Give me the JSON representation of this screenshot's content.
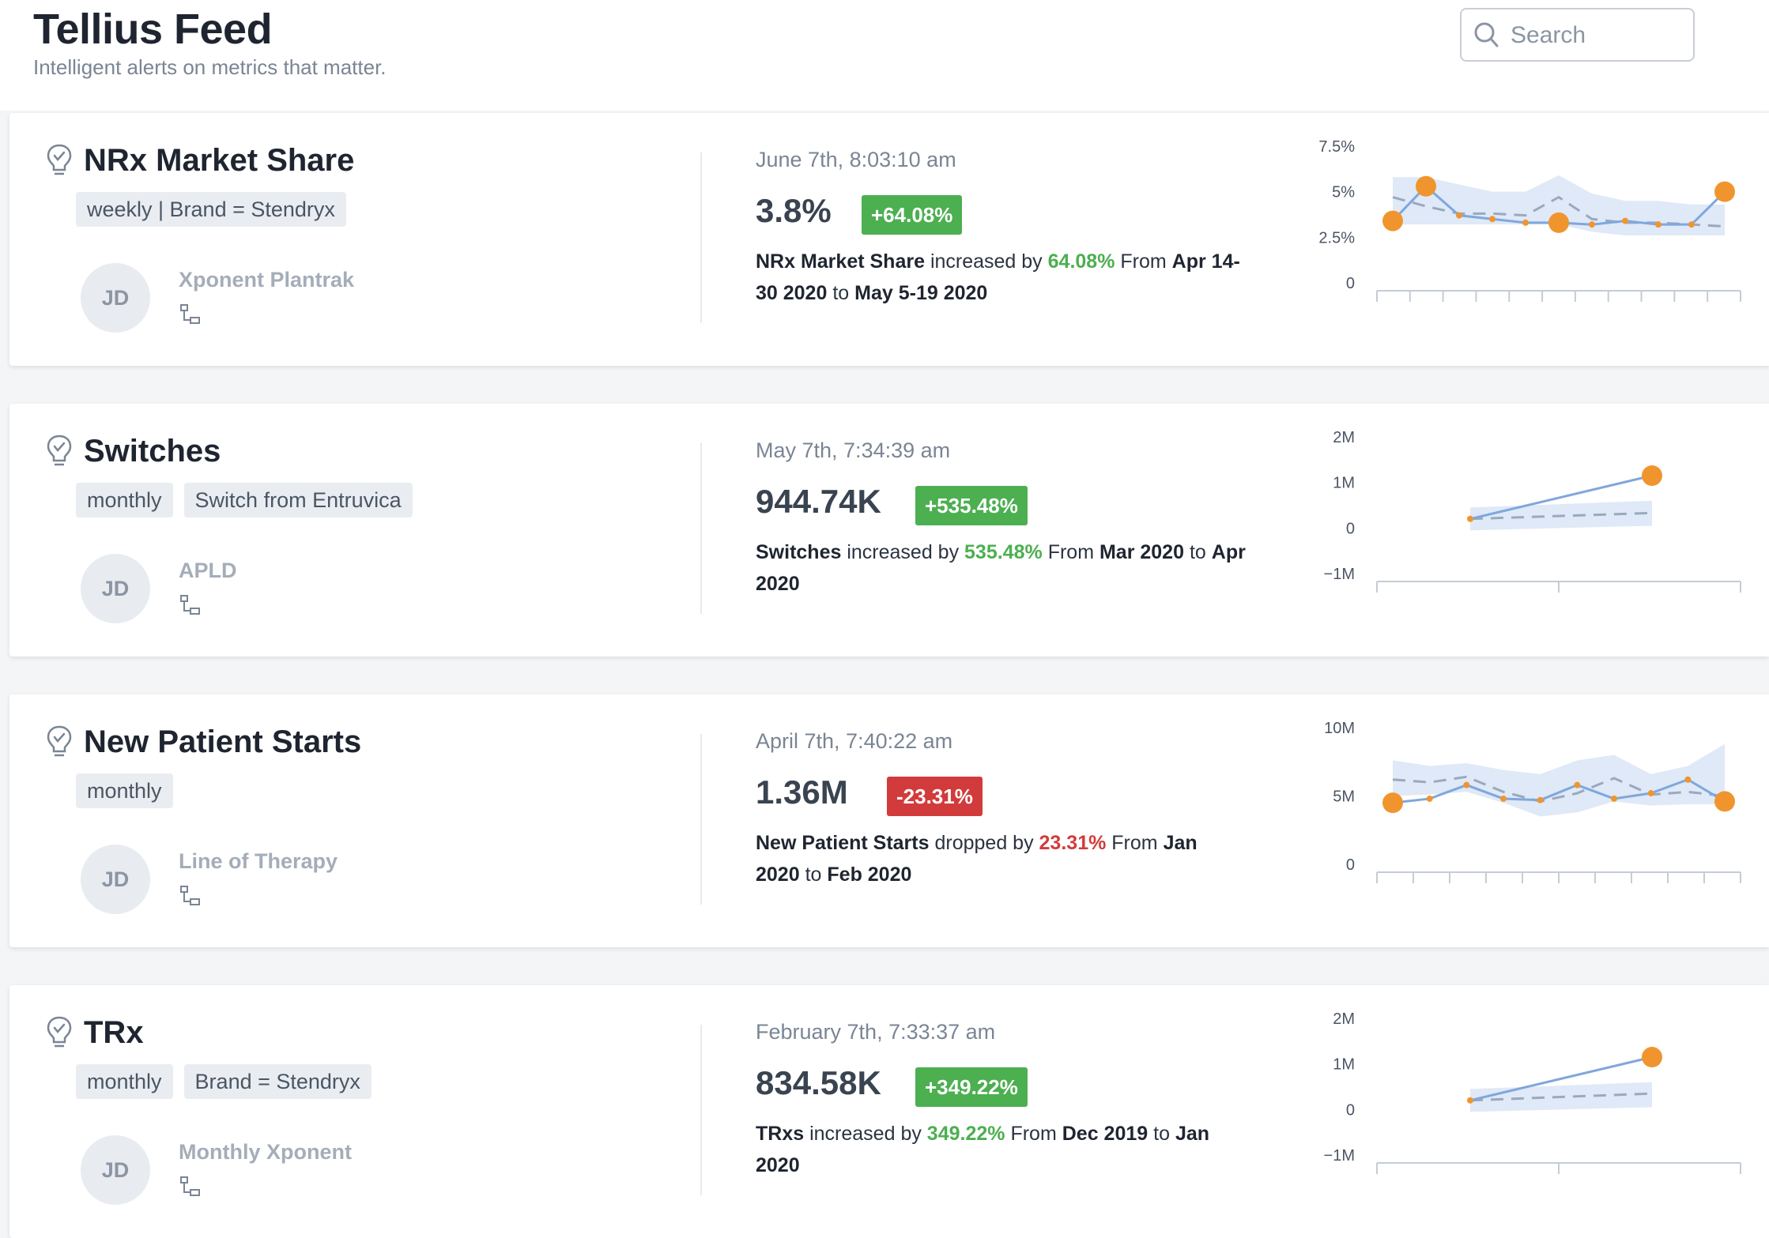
{
  "app": {
    "title": "Tellius Feed",
    "subtitle": "Intelligent alerts on metrics that matter."
  },
  "search": {
    "placeholder": "Search",
    "icon": "search-icon"
  },
  "colors": {
    "accent_orange": "#f0952e",
    "line_blue": "#7fa7dc",
    "band_blue": "#dce7f6",
    "positive_green": "#4caf50",
    "negative_red": "#d23b3b"
  },
  "cards": [
    {
      "title": "NRx Market Share",
      "tags": [
        "weekly | Brand = Stendryx"
      ],
      "avatar": "JD",
      "source": "Xponent Plantrak",
      "timestamp": "June 7th, 8:03:10 am",
      "value": "3.8%",
      "badge": "+64.08%",
      "direction": "up",
      "desc": {
        "metric": "NRx Market Share",
        "verb": "increased by",
        "change": "64.08%",
        "from_word": "From",
        "from": "Apr 14-30 2020",
        "to_word": "to",
        "to": "May 5-19 2020"
      }
    },
    {
      "title": "Switches",
      "tags": [
        "monthly",
        "Switch from Entruvica"
      ],
      "avatar": "JD",
      "source": "APLD",
      "timestamp": "May 7th, 7:34:39 am",
      "value": "944.74K",
      "badge": "+535.48%",
      "direction": "up",
      "desc": {
        "metric": "Switches",
        "verb": "increased by",
        "change": "535.48%",
        "from_word": "From",
        "from": "Mar 2020",
        "to_word": "to",
        "to": "Apr 2020"
      }
    },
    {
      "title": "New Patient Starts",
      "tags": [
        "monthly"
      ],
      "avatar": "JD",
      "source": "Line of Therapy",
      "timestamp": "April 7th, 7:40:22 am",
      "value": "1.36M",
      "badge": "-23.31%",
      "direction": "down",
      "desc": {
        "metric": "New Patient Starts",
        "verb": "dropped by",
        "change": "23.31%",
        "from_word": "From",
        "from": "Jan 2020",
        "to_word": "to",
        "to": "Feb 2020"
      }
    },
    {
      "title": "TRx",
      "tags": [
        "monthly",
        "Brand = Stendryx"
      ],
      "avatar": "JD",
      "source": "Monthly Xponent",
      "timestamp": "February 7th, 7:33:37 am",
      "value": "834.58K",
      "badge": "+349.22%",
      "direction": "up",
      "desc": {
        "metric": "TRxs",
        "verb": "increased by",
        "change": "349.22%",
        "from_word": "From",
        "from": "Dec 2019",
        "to_word": "to",
        "to": "Jan 2020"
      }
    }
  ],
  "chart_data": [
    {
      "type": "line",
      "ticks": [
        "0",
        "2.5%",
        "5%",
        "7.5%"
      ],
      "ylim": [
        0,
        7.5
      ],
      "x": [
        1,
        2,
        3,
        4,
        5,
        6,
        7,
        8,
        9,
        10,
        11
      ],
      "series": [
        {
          "values": [
            3.4,
            5.3,
            3.7,
            3.5,
            3.3,
            3.3,
            3.2,
            3.4,
            3.2,
            3.2,
            5.0
          ]
        },
        {
          "values": [
            4.7,
            4.2,
            3.8,
            3.8,
            3.7,
            4.7,
            3.5,
            3.3,
            3.3,
            3.2,
            3.1
          ]
        }
      ],
      "band": {
        "lower": [
          3.2,
          3.2,
          3.2,
          3.2,
          3.2,
          3.2,
          2.8,
          2.6,
          2.6,
          2.6,
          2.6
        ],
        "upper": [
          5.8,
          5.8,
          5.4,
          5.0,
          5.0,
          5.9,
          4.9,
          4.5,
          4.5,
          4.3,
          4.3
        ]
      },
      "highlight": [
        1,
        2,
        6,
        11
      ]
    },
    {
      "type": "line",
      "ticks": [
        "−1M",
        "0",
        "1M",
        "2M"
      ],
      "ylim": [
        -1,
        2
      ],
      "x": [
        1,
        2
      ],
      "series": [
        {
          "values": [
            0.2,
            1.15
          ]
        },
        {
          "values": [
            0.2,
            0.33
          ]
        }
      ],
      "band": {
        "lower": [
          -0.05,
          0.05
        ],
        "upper": [
          0.45,
          0.6
        ]
      },
      "highlight": [
        2
      ]
    },
    {
      "type": "line",
      "ticks": [
        "0",
        "5M",
        "10M"
      ],
      "ylim": [
        0,
        10
      ],
      "x": [
        1,
        2,
        3,
        4,
        5,
        6,
        7,
        8,
        9,
        10
      ],
      "series": [
        {
          "values": [
            4.5,
            4.8,
            5.8,
            4.8,
            4.7,
            5.8,
            4.8,
            5.2,
            6.2,
            4.6
          ]
        },
        {
          "values": [
            6.2,
            6.0,
            6.4,
            5.3,
            4.6,
            5.2,
            6.3,
            5.1,
            5.3,
            5.0
          ]
        }
      ],
      "band": {
        "lower": [
          5.0,
          5.1,
          5.3,
          4.5,
          3.5,
          3.8,
          4.6,
          4.3,
          4.4,
          4.4
        ],
        "upper": [
          7.6,
          7.2,
          7.4,
          6.9,
          6.6,
          7.6,
          8.0,
          6.6,
          7.2,
          8.8
        ]
      },
      "highlight": [
        1,
        10
      ]
    },
    {
      "type": "line",
      "ticks": [
        "−1M",
        "0",
        "1M",
        "2M"
      ],
      "ylim": [
        -1,
        2
      ],
      "x": [
        1,
        2
      ],
      "series": [
        {
          "values": [
            0.2,
            1.15
          ]
        },
        {
          "values": [
            0.2,
            0.35
          ]
        }
      ],
      "band": {
        "lower": [
          -0.05,
          0.05
        ],
        "upper": [
          0.45,
          0.6
        ]
      },
      "highlight": [
        2
      ]
    }
  ]
}
